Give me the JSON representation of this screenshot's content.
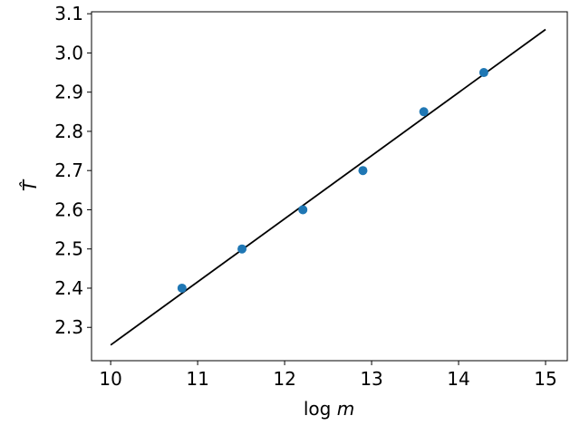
{
  "chart_data": {
    "type": "scatter",
    "xlabel": "log m",
    "ylabel": "T̂",
    "xlim": [
      9.78,
      15.25
    ],
    "ylim": [
      2.215,
      3.105
    ],
    "xticks": [
      10,
      11,
      12,
      13,
      14,
      15
    ],
    "yticks": [
      2.3,
      2.4,
      2.5,
      2.6,
      2.7,
      2.8,
      2.9,
      3.0,
      3.1
    ],
    "xtick_labels": [
      "10",
      "11",
      "12",
      "13",
      "14",
      "15"
    ],
    "ytick_labels": [
      "2.3",
      "2.4",
      "2.5",
      "2.6",
      "2.7",
      "2.8",
      "2.9",
      "3.0",
      "3.1"
    ],
    "grid": false,
    "series": [
      {
        "type": "scatter",
        "color": "#1f77b4",
        "x": [
          10.82,
          11.51,
          12.21,
          12.9,
          13.6,
          14.29
        ],
        "y": [
          2.4,
          2.5,
          2.6,
          2.7,
          2.85,
          2.95
        ]
      },
      {
        "type": "line",
        "color": "#000000",
        "x": [
          10,
          15
        ],
        "y": [
          2.255,
          3.06
        ]
      }
    ]
  }
}
